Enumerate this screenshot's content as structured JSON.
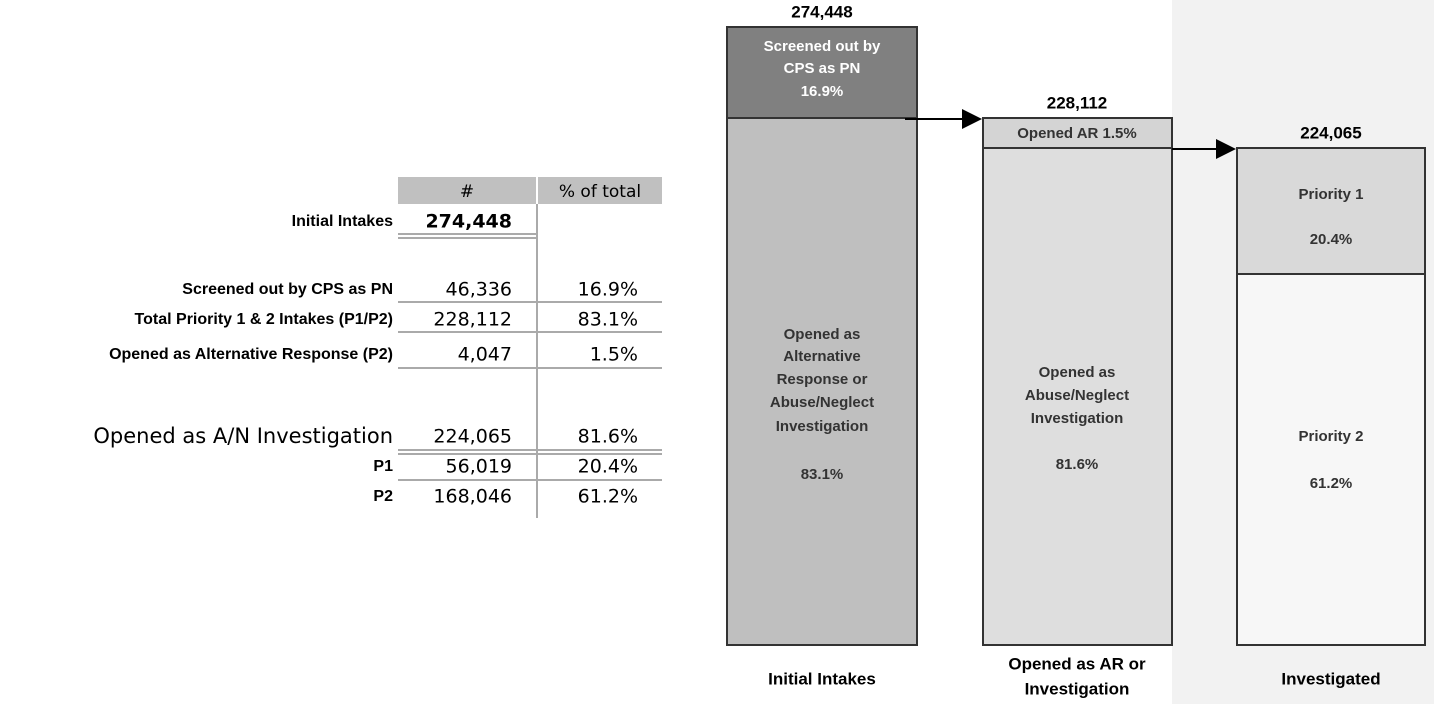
{
  "table": {
    "headers": [
      "#",
      "% of total"
    ],
    "rows": [
      {
        "label": "Initial Intakes",
        "count": "274,448"
      },
      {
        "label": "Screened out by CPS as PN",
        "count": "46,336",
        "percent": "16.9%"
      },
      {
        "label": "Total Priority 1 & 2 Intakes (P1/P2)",
        "count": "228,112",
        "percent": "83.1%"
      },
      {
        "label": "Opened as Alternative Response (P2)",
        "count": "4,047",
        "percent": "1.5%"
      },
      {
        "label": "Opened as A/N Investigation",
        "count": "224,065",
        "percent": "81.6%"
      },
      {
        "label": "P1",
        "count": "56,019",
        "percent": "20.4%"
      },
      {
        "label": "P2",
        "count": "168,046",
        "percent": "61.2%"
      }
    ]
  },
  "diagram": {
    "columns": [
      {
        "total": "274,448",
        "label": [
          "Initial Intakes"
        ],
        "segments": [
          {
            "lines": [
              "Screened out by",
              "CPS as PN",
              "16.9%"
            ]
          },
          {
            "lines": [
              "Opened as",
              "Alternative",
              "Response or",
              "Abuse/Neglect",
              "Investigation",
              "83.1%"
            ]
          }
        ]
      },
      {
        "total": "228,112",
        "label": [
          "Opened as AR or",
          "Investigation"
        ],
        "segments": [
          {
            "lines": [
              "Opened AR 1.5%"
            ]
          },
          {
            "lines": [
              "Opened as",
              "Abuse/Neglect",
              "Investigation",
              "81.6%"
            ]
          }
        ]
      },
      {
        "total": "224,065",
        "label": [
          "Investigated"
        ],
        "segments": [
          {
            "lines": [
              "Priority 1",
              "20.4%"
            ]
          },
          {
            "lines": [
              "Priority 2",
              "61.2%"
            ]
          }
        ]
      }
    ]
  }
}
